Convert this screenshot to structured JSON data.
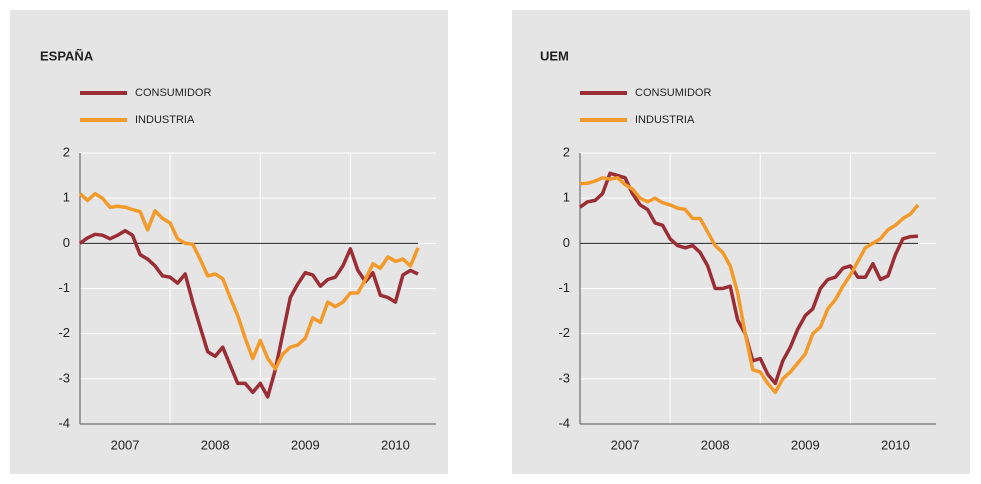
{
  "chart_data": [
    {
      "type": "line",
      "title": "ESPAÑA",
      "x": [
        2007,
        2007.083,
        2007.167,
        2007.25,
        2007.333,
        2007.417,
        2007.5,
        2007.583,
        2007.667,
        2007.75,
        2007.833,
        2007.917,
        2008,
        2008.083,
        2008.167,
        2008.25,
        2008.333,
        2008.417,
        2008.5,
        2008.583,
        2008.667,
        2008.75,
        2008.833,
        2008.917,
        2009,
        2009.083,
        2009.167,
        2009.25,
        2009.333,
        2009.417,
        2009.5,
        2009.583,
        2009.667,
        2009.75,
        2009.833,
        2009.917,
        2010,
        2010.083,
        2010.167,
        2010.25,
        2010.333,
        2010.417,
        2010.5,
        2010.583,
        2010.667,
        2010.75
      ],
      "series": [
        {
          "name": "CONSUMIDOR",
          "color": "#9b2d35",
          "values": [
            0,
            0.12,
            0.2,
            0.18,
            0.1,
            0.18,
            0.28,
            0.18,
            -0.25,
            -0.35,
            -0.5,
            -0.72,
            -0.75,
            -0.88,
            -0.68,
            -1.3,
            -1.85,
            -2.4,
            -2.5,
            -2.3,
            -2.7,
            -3.1,
            -3.1,
            -3.3,
            -3.1,
            -3.4,
            -2.8,
            -2,
            -1.2,
            -0.9,
            -0.65,
            -0.7,
            -0.95,
            -0.8,
            -0.75,
            -0.5,
            -0.12,
            -0.6,
            -0.85,
            -0.65,
            -1.15,
            -1.2,
            -1.3,
            -0.7,
            -0.6,
            -0.68
          ]
        },
        {
          "name": "INDUSTRIA",
          "color": "#f39a2b",
          "values": [
            1.1,
            0.95,
            1.1,
            1,
            0.8,
            0.82,
            0.8,
            0.75,
            0.7,
            0.3,
            0.72,
            0.55,
            0.45,
            0.1,
            0,
            -0.02,
            -0.35,
            -0.72,
            -0.68,
            -0.78,
            -1.2,
            -1.6,
            -2.1,
            -2.55,
            -2.15,
            -2.55,
            -2.78,
            -2.45,
            -2.3,
            -2.25,
            -2.1,
            -1.65,
            -1.75,
            -1.3,
            -1.4,
            -1.3,
            -1.1,
            -1.1,
            -0.8,
            -0.45,
            -0.55,
            -0.3,
            -0.4,
            -0.35,
            -0.5,
            -0.1
          ]
        }
      ],
      "xlim": [
        2007,
        2010.95
      ],
      "xticks": [
        2008,
        2009,
        2010
      ],
      "xlabels": [
        {
          "value": 2007.5,
          "label": "2007"
        },
        {
          "value": 2008.5,
          "label": "2008"
        },
        {
          "value": 2009.5,
          "label": "2009"
        },
        {
          "value": 2010.5,
          "label": "2010"
        }
      ],
      "ylim": [
        -4,
        2
      ],
      "yticks": [
        -4,
        -3,
        -2,
        -1,
        0,
        1,
        2
      ],
      "grid": true
    },
    {
      "type": "line",
      "title": "UEM",
      "x": [
        2007,
        2007.083,
        2007.167,
        2007.25,
        2007.333,
        2007.417,
        2007.5,
        2007.583,
        2007.667,
        2007.75,
        2007.833,
        2007.917,
        2008,
        2008.083,
        2008.167,
        2008.25,
        2008.333,
        2008.417,
        2008.5,
        2008.583,
        2008.667,
        2008.75,
        2008.833,
        2008.917,
        2009,
        2009.083,
        2009.167,
        2009.25,
        2009.333,
        2009.417,
        2009.5,
        2009.583,
        2009.667,
        2009.75,
        2009.833,
        2009.917,
        2010,
        2010.083,
        2010.167,
        2010.25,
        2010.333,
        2010.417,
        2010.5,
        2010.583,
        2010.667,
        2010.75
      ],
      "series": [
        {
          "name": "CONSUMIDOR",
          "color": "#9b2d35",
          "values": [
            0.8,
            0.92,
            0.95,
            1.1,
            1.55,
            1.5,
            1.45,
            1.1,
            0.85,
            0.75,
            0.45,
            0.4,
            0.1,
            -0.05,
            -0.1,
            -0.05,
            -0.2,
            -0.5,
            -1,
            -1,
            -0.95,
            -1.7,
            -2,
            -2.6,
            -2.55,
            -2.9,
            -3.1,
            -2.6,
            -2.3,
            -1.9,
            -1.6,
            -1.45,
            -1,
            -0.8,
            -0.75,
            -0.55,
            -0.5,
            -0.75,
            -0.75,
            -0.45,
            -0.8,
            -0.72,
            -0.25,
            0.1,
            0.15,
            0.16
          ]
        },
        {
          "name": "INDUSTRIA",
          "color": "#f39a2b",
          "values": [
            1.32,
            1.33,
            1.38,
            1.45,
            1.42,
            1.45,
            1.3,
            1.2,
            1,
            0.92,
            1,
            0.9,
            0.85,
            0.78,
            0.75,
            0.55,
            0.55,
            0.25,
            -0.05,
            -0.2,
            -0.5,
            -1.1,
            -2,
            -2.8,
            -2.85,
            -3.1,
            -3.3,
            -3,
            -2.85,
            -2.65,
            -2.45,
            -2,
            -1.85,
            -1.45,
            -1.25,
            -0.95,
            -0.7,
            -0.4,
            -0.1,
            0,
            0.1,
            0.3,
            0.4,
            0.55,
            0.65,
            0.85
          ]
        }
      ],
      "xlim": [
        2007,
        2010.95
      ],
      "xticks": [
        2008,
        2009,
        2010
      ],
      "xlabels": [
        {
          "value": 2007.5,
          "label": "2007"
        },
        {
          "value": 2008.5,
          "label": "2008"
        },
        {
          "value": 2009.5,
          "label": "2009"
        },
        {
          "value": 2010.5,
          "label": "2010"
        }
      ],
      "ylim": [
        -4,
        2
      ],
      "yticks": [
        -4,
        -3,
        -2,
        -1,
        0,
        1,
        2
      ],
      "grid": true
    }
  ]
}
